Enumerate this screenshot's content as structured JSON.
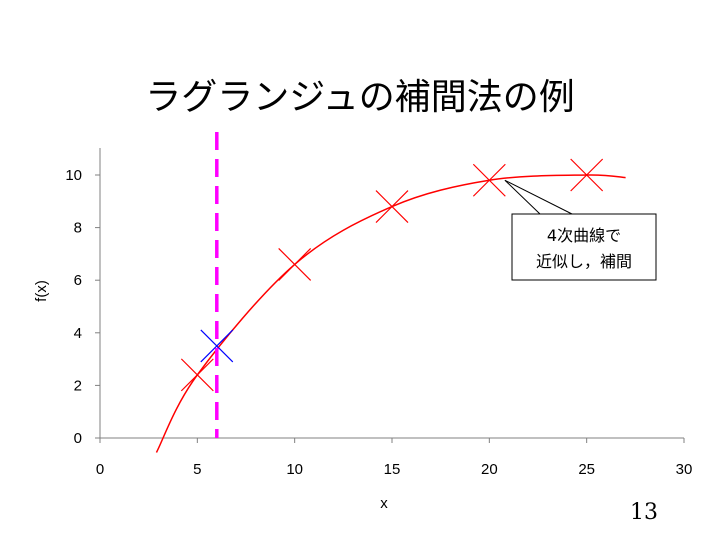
{
  "slide": {
    "title": "ラグランジュの補間法の例",
    "page_number": "13"
  },
  "chart_data": {
    "type": "scatter",
    "xlabel": "x",
    "ylabel": "f(x)",
    "xlim": [
      0,
      30
    ],
    "ylim": [
      0,
      11
    ],
    "x_ticks": [
      0,
      5,
      10,
      15,
      20,
      25,
      30
    ],
    "y_ticks": [
      0,
      2,
      4,
      6,
      8,
      10
    ],
    "grid": false,
    "series": [
      {
        "marker": "x",
        "color": "#ff0000",
        "points": [
          [
            5,
            2.4
          ],
          [
            10,
            6.6
          ],
          [
            15,
            8.8
          ],
          [
            20,
            9.8
          ],
          [
            25,
            10.0
          ]
        ]
      },
      {
        "marker": "curve",
        "color": "#ff0000",
        "x_range": [
          2.9,
          27
        ],
        "points": [
          [
            2.9,
            -0.55
          ],
          [
            5,
            2.4
          ],
          [
            10,
            6.6
          ],
          [
            15,
            8.8
          ],
          [
            20,
            9.8
          ],
          [
            25,
            10.0
          ],
          [
            27,
            9.9
          ]
        ]
      },
      {
        "marker": "x",
        "color": "#0000ff",
        "points": [
          [
            6,
            3.5
          ]
        ]
      }
    ],
    "reference_line": {
      "x": 6,
      "color": "#ff00ff",
      "style": "dashed"
    },
    "annotation": {
      "lines": [
        "4次曲線で",
        "近似し，補間"
      ],
      "points_to": [
        20.8,
        9.8
      ]
    }
  }
}
